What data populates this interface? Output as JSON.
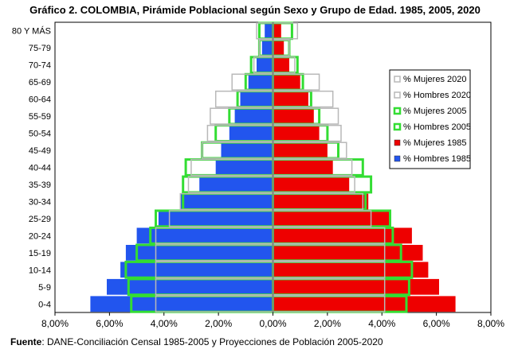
{
  "chart_data": {
    "type": "bar",
    "title": "Gráfico 2. COLOMBIA, Pirámide Poblacional según Sexo y Grupo de Edad. 1985, 2005, 2020",
    "source_label": "Fuente",
    "source_text": ": DANE-Conciliación Censal 1985-2005 y Proyecciones de Población 2005-2020",
    "categories": [
      "80 Y MÁS",
      "75-79",
      "70-74",
      "65-69",
      "60-64",
      "55-59",
      "50-54",
      "45-49",
      "40-44",
      "35-39",
      "30-34",
      "25-29",
      "20-24",
      "15-19",
      "10-14",
      "5-9",
      "0-4"
    ],
    "x_ticks": [
      "8,00%",
      "6,00%",
      "4,00%",
      "2,00%",
      "0,00%",
      "2,00%",
      "4,00%",
      "6,00%",
      "8,00%"
    ],
    "x_tick_values": [
      -8,
      -6,
      -4,
      -2,
      0,
      2,
      4,
      6,
      8
    ],
    "xlim": [
      -8,
      8
    ],
    "legend_position": "right",
    "series": [
      {
        "name": "% Mujeres 2020",
        "side": "right",
        "year": "2020",
        "color": "#b8b8b8",
        "style": "outline",
        "values": [
          0.9,
          0.6,
          0.8,
          1.7,
          2.2,
          2.4,
          2.5,
          2.7,
          2.9,
          3.0,
          3.3,
          3.6,
          4.1,
          4.1,
          4.1,
          4.1,
          4.1
        ]
      },
      {
        "name": "% Hombres 2020",
        "side": "left",
        "year": "2020",
        "color": "#b8b8b8",
        "style": "outline",
        "values": [
          0.6,
          0.5,
          0.7,
          1.5,
          2.1,
          2.3,
          2.4,
          2.6,
          3.0,
          3.1,
          3.4,
          3.8,
          4.3,
          4.3,
          4.3,
          4.3,
          4.3
        ]
      },
      {
        "name": "% Mujeres 2005",
        "side": "right",
        "year": "2005",
        "color": "#33dd33",
        "style": "outline",
        "values": [
          0.7,
          0.6,
          0.9,
          1.1,
          1.4,
          1.7,
          2.0,
          2.4,
          3.3,
          3.6,
          3.4,
          4.3,
          4.4,
          4.7,
          5.1,
          5.0,
          4.9
        ]
      },
      {
        "name": "% Hombres 2005",
        "side": "left",
        "year": "2005",
        "color": "#33dd33",
        "style": "outline",
        "values": [
          0.5,
          0.5,
          0.8,
          1.0,
          1.3,
          1.6,
          2.1,
          2.6,
          3.2,
          3.3,
          3.3,
          4.3,
          4.5,
          5.0,
          5.4,
          5.3,
          5.2
        ]
      },
      {
        "name": "% Mujeres 1985",
        "side": "right",
        "year": "1985",
        "color": "#ee0000",
        "style": "filled",
        "values": [
          0.3,
          0.4,
          0.6,
          1.0,
          1.3,
          1.5,
          1.7,
          2.0,
          2.2,
          2.8,
          3.5,
          4.3,
          5.1,
          5.5,
          5.7,
          6.1,
          6.7
        ]
      },
      {
        "name": "% Hombres 1985",
        "side": "left",
        "year": "1985",
        "color": "#2255ee",
        "style": "filled",
        "values": [
          0.3,
          0.4,
          0.6,
          0.9,
          1.2,
          1.4,
          1.6,
          1.9,
          2.1,
          2.7,
          3.4,
          4.2,
          5.0,
          5.4,
          5.6,
          6.1,
          6.7
        ]
      }
    ]
  }
}
